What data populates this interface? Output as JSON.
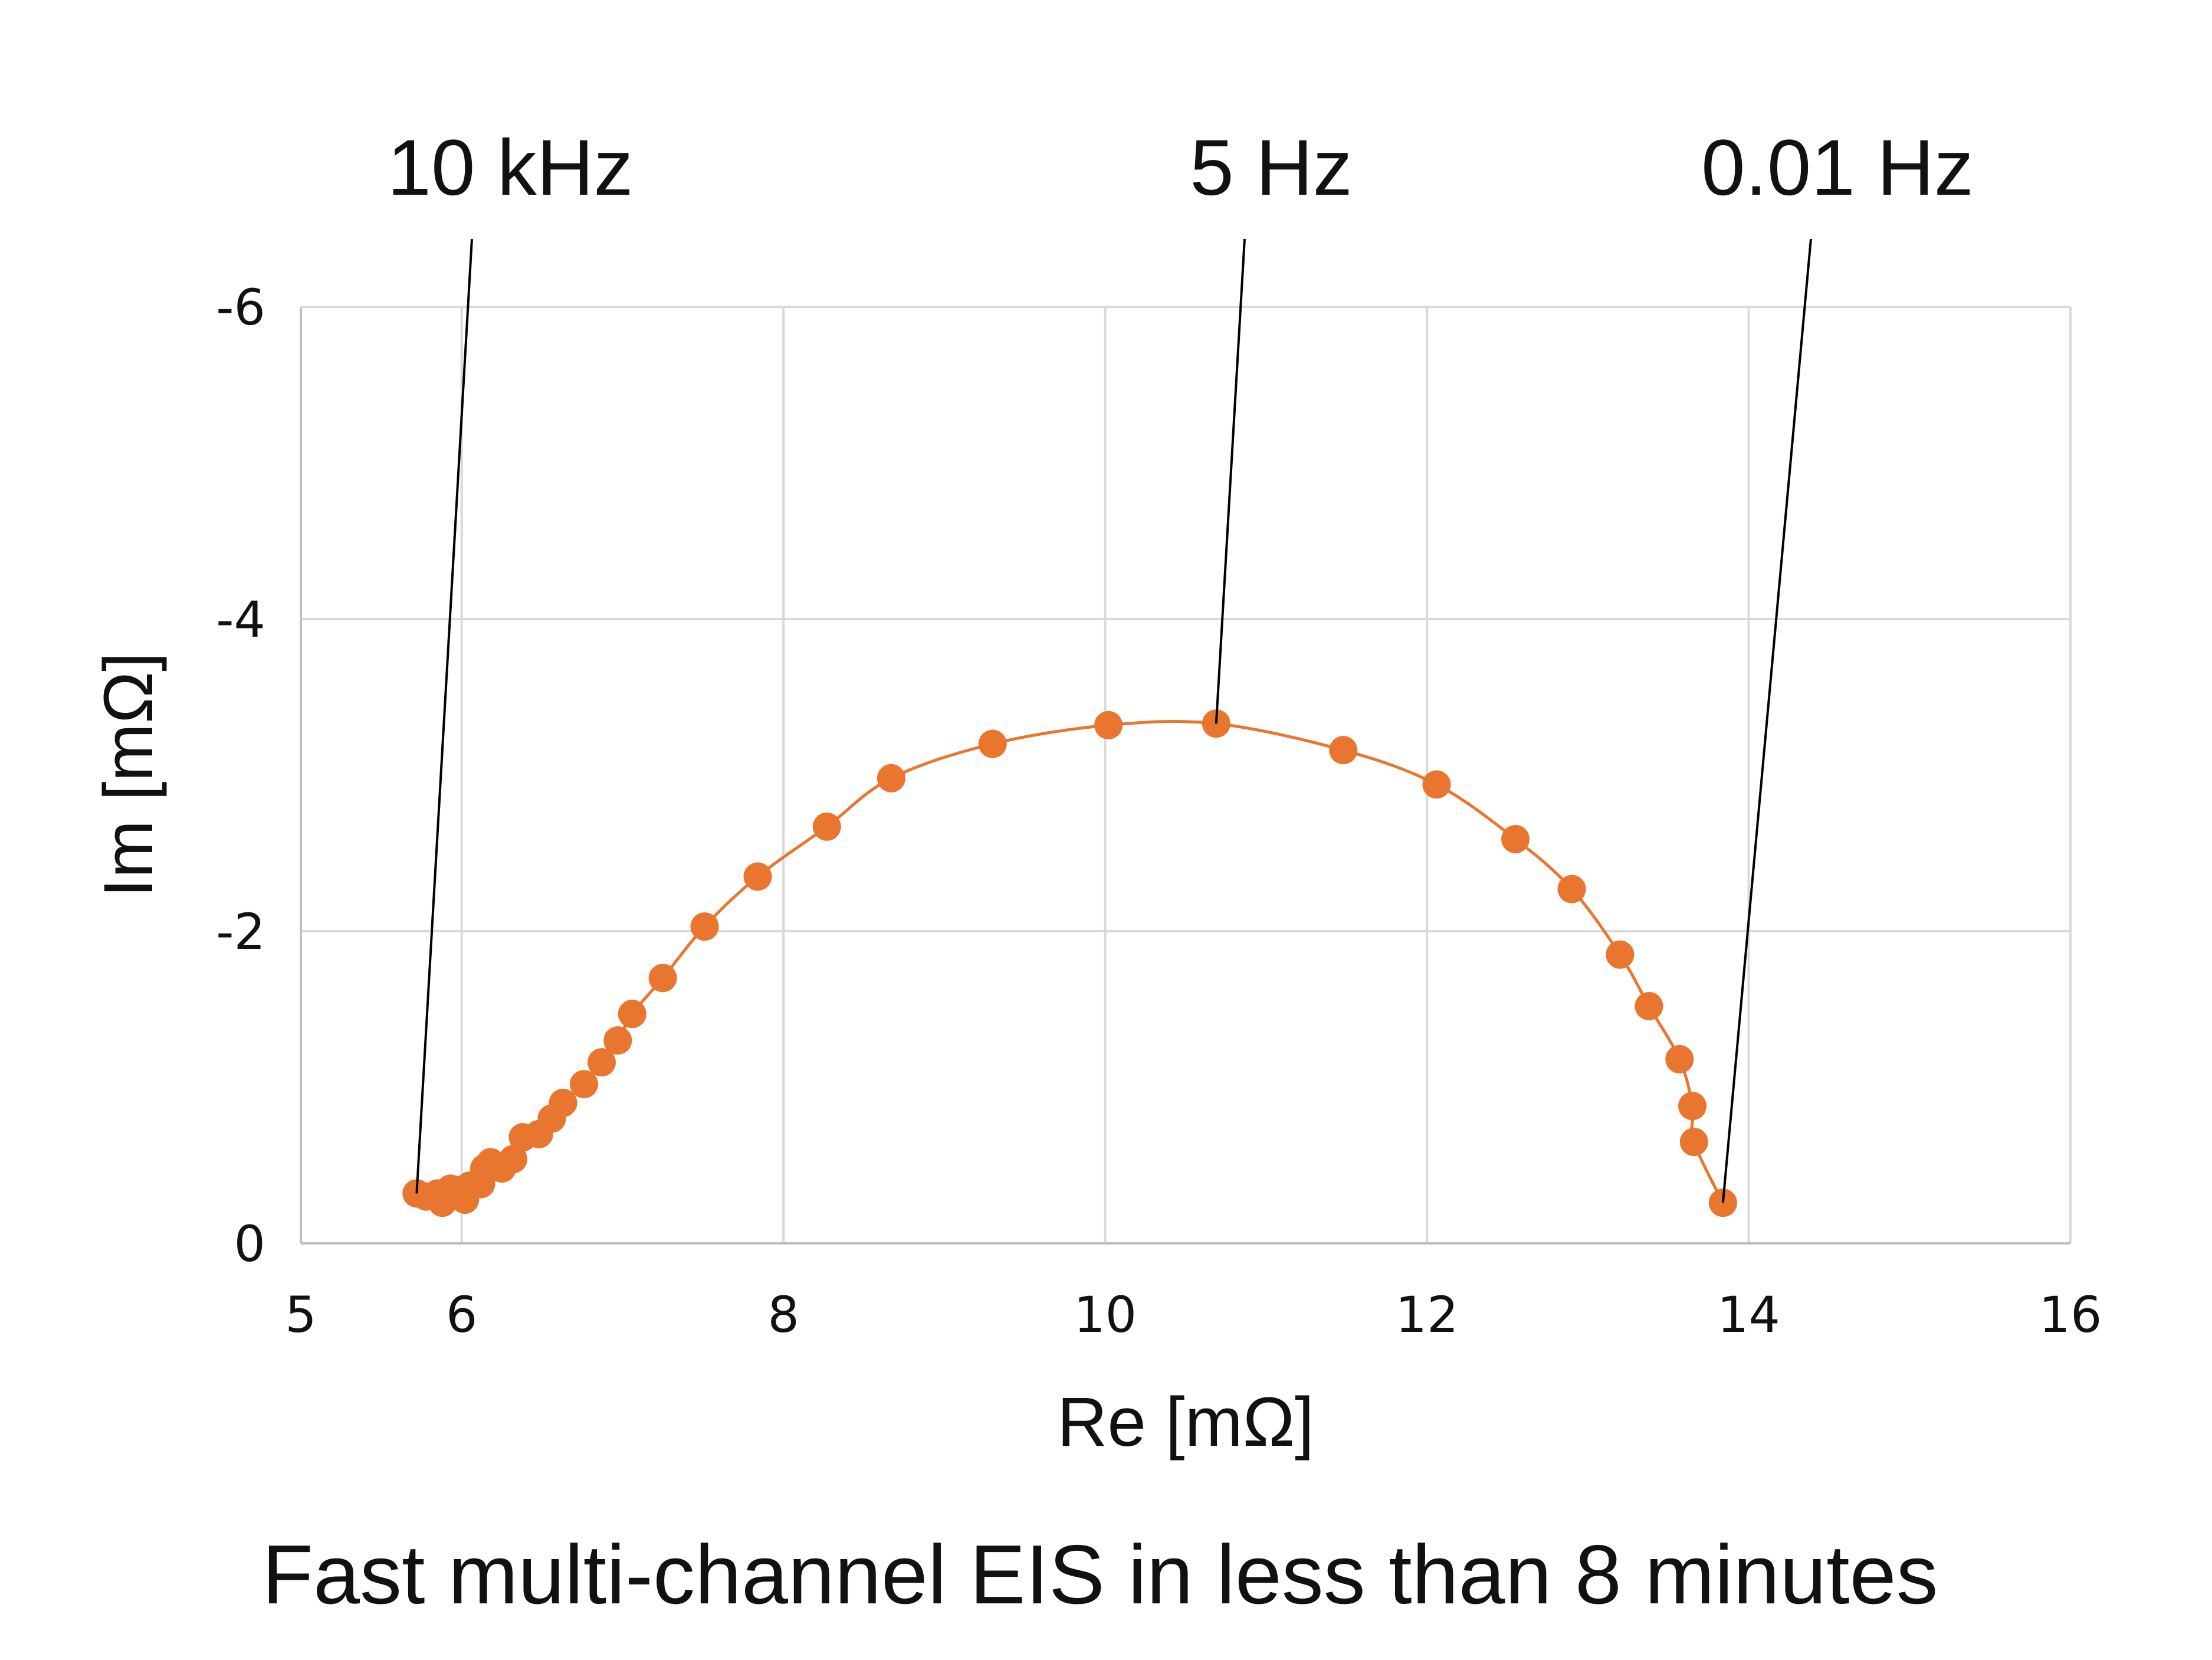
{
  "chart_data": {
    "type": "scatter",
    "title": "",
    "caption": "Fast multi-channel EIS in less than 8 minutes",
    "xlabel": "Re [mΩ]",
    "ylabel": "Im [mΩ]",
    "xlim": [
      5,
      16
    ],
    "ylim": [
      0,
      -6
    ],
    "y_axis_inverted": true,
    "x_ticks": [
      5,
      6,
      8,
      10,
      12,
      14,
      16
    ],
    "x_tick_labels": [
      "5",
      "6",
      "8",
      "10",
      "12",
      "14",
      "16"
    ],
    "y_ticks": [
      0,
      -2,
      -4,
      -6
    ],
    "y_tick_labels": [
      "0",
      "-2",
      "-4",
      "-6"
    ],
    "grid": true,
    "legend": "none",
    "marker_color": "#E8762F",
    "line_color": "#E8762F",
    "series": [
      {
        "x": [
          5.72,
          5.78,
          5.85,
          5.88,
          5.93,
          5.98,
          6.02,
          6.05,
          6.12,
          6.14,
          6.18,
          6.25,
          6.32,
          6.38,
          6.48,
          6.56,
          6.63,
          6.76,
          6.87,
          6.97,
          7.06,
          7.25,
          7.51,
          7.84,
          8.27,
          8.67,
          9.3,
          10.02,
          10.69,
          11.48,
          12.06,
          12.55,
          12.9,
          13.2,
          13.38,
          13.57,
          13.65,
          13.66,
          13.84
        ],
        "y": [
          -0.32,
          -0.3,
          -0.32,
          -0.26,
          -0.35,
          -0.34,
          -0.28,
          -0.37,
          -0.38,
          -0.48,
          -0.52,
          -0.48,
          -0.54,
          -0.68,
          -0.7,
          -0.8,
          -0.9,
          -1.02,
          -1.16,
          -1.3,
          -1.47,
          -1.7,
          -2.03,
          -2.35,
          -2.67,
          -2.98,
          -3.2,
          -3.32,
          -3.33,
          -3.16,
          -2.94,
          -2.59,
          -2.27,
          -1.85,
          -1.52,
          -1.18,
          -0.88,
          -0.65,
          -0.26
        ]
      }
    ],
    "annotations": [
      {
        "text": "10 kHz",
        "x": 5.72,
        "y": -0.32
      },
      {
        "text": "5 Hz",
        "x": 10.69,
        "y": -3.33
      },
      {
        "text": "0.01 Hz",
        "x": 13.84,
        "y": -0.26
      }
    ]
  }
}
